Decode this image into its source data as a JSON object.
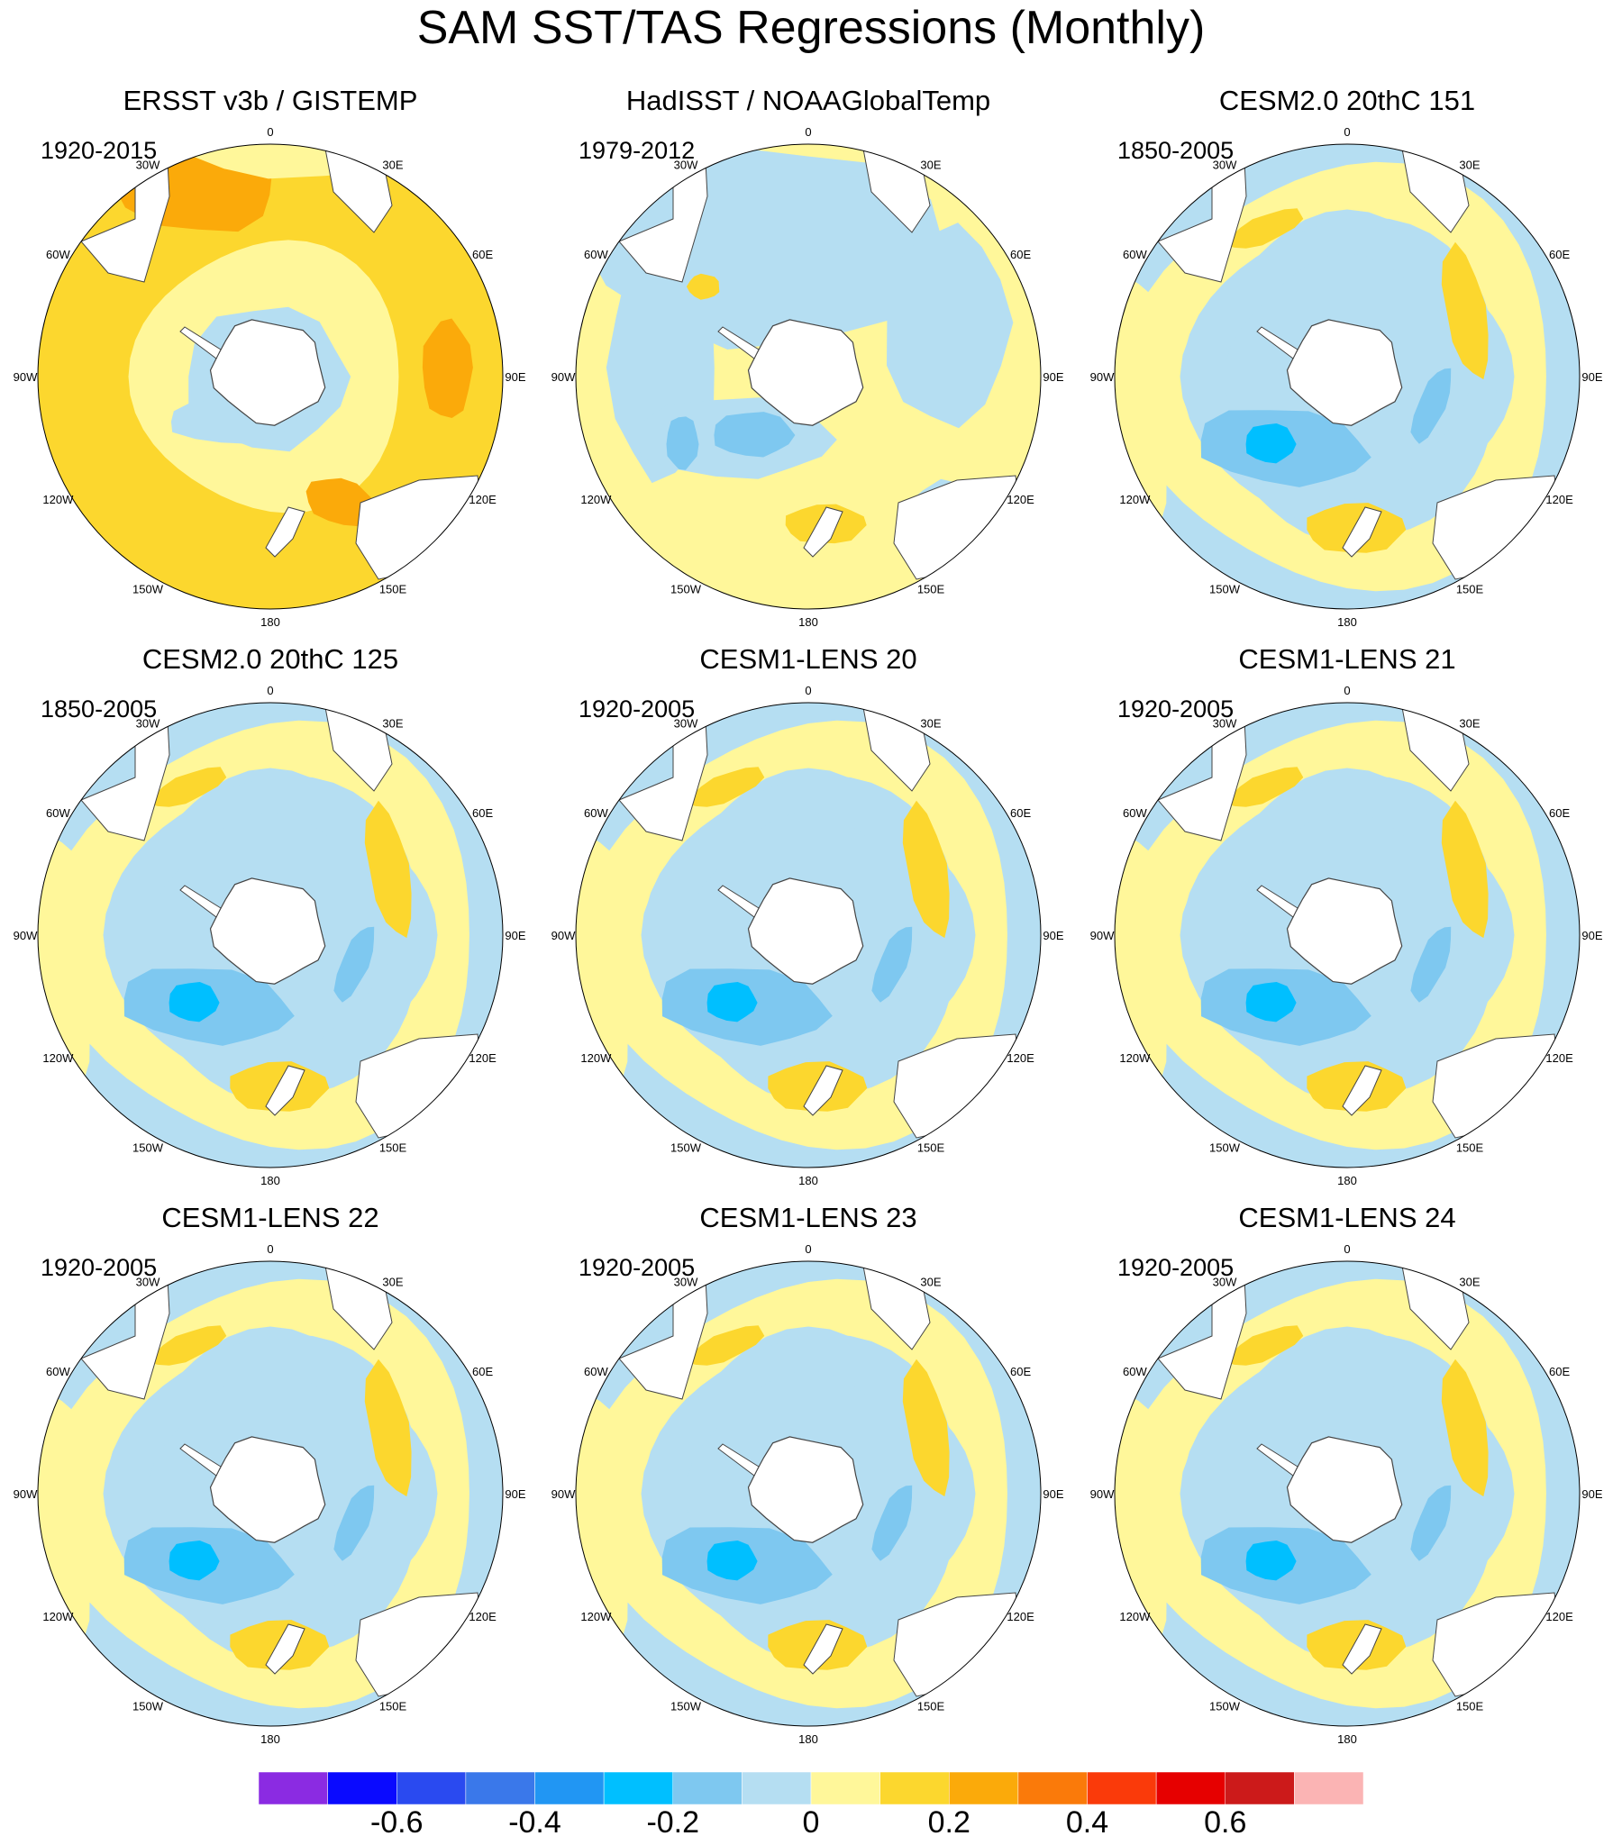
{
  "figure": {
    "title": "SAM SST/TAS Regressions (Monthly)"
  },
  "longitude_labels": [
    "0",
    "30E",
    "60E",
    "90E",
    "120E",
    "150E",
    "180",
    "150W",
    "120W",
    "90W",
    "60W",
    "30W"
  ],
  "panels": [
    {
      "title": "ERSST v3b / GISTEMP",
      "period": "1920-2015",
      "pattern": "obs_warm"
    },
    {
      "title": "HadISST / NOAAGlobalTemp",
      "period": "1979-2012",
      "pattern": "obs_mixed"
    },
    {
      "title": "CESM2.0 20thC 151",
      "period": "1850-2005",
      "pattern": "model"
    },
    {
      "title": "CESM2.0 20thC 125",
      "period": "1850-2005",
      "pattern": "model"
    },
    {
      "title": "CESM1-LENS 20",
      "period": "1920-2005",
      "pattern": "model"
    },
    {
      "title": "CESM1-LENS 21",
      "period": "1920-2005",
      "pattern": "model"
    },
    {
      "title": "CESM1-LENS 22",
      "period": "1920-2005",
      "pattern": "model"
    },
    {
      "title": "CESM1-LENS 23",
      "period": "1920-2005",
      "pattern": "model"
    },
    {
      "title": "CESM1-LENS 24",
      "period": "1920-2005",
      "pattern": "model"
    }
  ],
  "colorbar": {
    "colors": [
      "#8b2be2",
      "#0a0aff",
      "#2a4af0",
      "#3a78ea",
      "#2196f3",
      "#00bfff",
      "#7ec8f0",
      "#b5def2",
      "#fff79a",
      "#fcd72e",
      "#fbaa0a",
      "#fa7a0a",
      "#fa3a0a",
      "#e60000",
      "#cc1a1a",
      "#fbb4b4"
    ],
    "tick_labels": [
      "-0.6",
      "-0.4",
      "-0.2",
      "0",
      "0.2",
      "0.4",
      "0.6"
    ],
    "tick_values": [
      -0.6,
      -0.4,
      -0.2,
      0,
      0.2,
      0.4,
      0.6
    ],
    "interval": 0.1
  },
  "palette": {
    "land": "#ffffff",
    "coast": "#444444",
    "ocean_neg1": "#b5def2",
    "ocean_neg2": "#7ec8f0",
    "ocean_neg3": "#2196f3",
    "ocean_neg4": "#00bfff",
    "ocean_pos1": "#fff79a",
    "ocean_pos2": "#fcd72e",
    "ocean_pos3": "#fbaa0a",
    "ocean_pos4": "#fa7a0a"
  }
}
